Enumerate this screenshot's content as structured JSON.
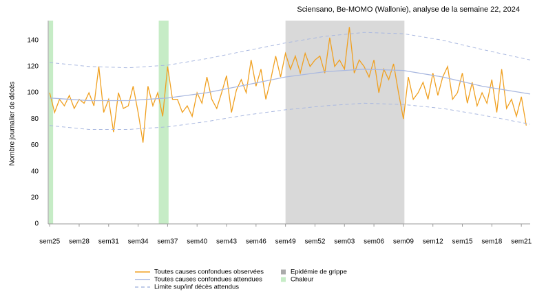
{
  "chart_data": {
    "type": "line",
    "title": "Sciensano, Be-MOMO (Wallonie), analyse de la semaine 22, 2024",
    "y_label": "Nombre journalier de décès",
    "xlim": [
      -0.15,
      48.9
    ],
    "ylim": [
      0,
      155
    ],
    "yticks": [
      0,
      20,
      40,
      60,
      80,
      100,
      120,
      140
    ],
    "xticks": [
      {
        "value": 0,
        "label": "sem25"
      },
      {
        "value": 3,
        "label": "sem28"
      },
      {
        "value": 6,
        "label": "sem31"
      },
      {
        "value": 9,
        "label": "sem34"
      },
      {
        "value": 12,
        "label": "sem37"
      },
      {
        "value": 15,
        "label": "sem40"
      },
      {
        "value": 18,
        "label": "sem43"
      },
      {
        "value": 21,
        "label": "sem46"
      },
      {
        "value": 24,
        "label": "sem49"
      },
      {
        "value": 27,
        "label": "sem52"
      },
      {
        "value": 30,
        "label": "sem03"
      },
      {
        "value": 33,
        "label": "sem06"
      },
      {
        "value": 36,
        "label": "sem09"
      },
      {
        "value": 39,
        "label": "sem12"
      },
      {
        "value": 42,
        "label": "sem15"
      },
      {
        "value": 45,
        "label": "sem18"
      },
      {
        "value": 48,
        "label": "sem21"
      }
    ],
    "bands": [
      {
        "name": "Epidémie de grippe",
        "color": "#d9d9d9",
        "ranges": [
          [
            24,
            36.1
          ]
        ]
      },
      {
        "name": "Chaleur",
        "color": "#c6ecc6",
        "ranges": [
          [
            -0.1,
            0.35
          ],
          [
            11.1,
            12.1
          ]
        ]
      }
    ],
    "series": [
      {
        "name": "Toutes causes confondues observées",
        "color": "#f0a020",
        "style": "solid",
        "x": [
          0,
          0.5,
          1,
          1.5,
          2,
          2.5,
          3,
          3.5,
          4,
          4.5,
          5,
          5.5,
          6,
          6.5,
          7,
          7.5,
          8,
          8.5,
          9,
          9.5,
          10,
          10.5,
          11,
          11.5,
          12,
          12.5,
          13,
          13.5,
          14,
          14.5,
          15,
          15.5,
          16,
          16.5,
          17,
          17.5,
          18,
          18.5,
          19,
          19.5,
          20,
          20.5,
          21,
          21.5,
          22,
          22.5,
          23,
          23.5,
          24,
          24.5,
          25,
          25.5,
          26,
          26.5,
          27,
          27.5,
          28,
          28.5,
          29,
          29.5,
          30,
          30.5,
          31,
          31.5,
          32,
          32.5,
          33,
          33.5,
          34,
          34.5,
          35,
          35.5,
          36,
          36.5,
          37,
          37.5,
          38,
          38.5,
          39,
          39.5,
          40,
          40.5,
          41,
          41.5,
          42,
          42.5,
          43,
          43.5,
          44,
          44.5,
          45,
          45.5,
          46,
          46.5,
          47,
          47.5,
          48,
          48.5
        ],
        "values": [
          100,
          85,
          95,
          90,
          98,
          88,
          95,
          92,
          100,
          90,
          120,
          85,
          95,
          70,
          100,
          88,
          90,
          105,
          85,
          62,
          105,
          90,
          100,
          82,
          120,
          95,
          95,
          85,
          90,
          82,
          100,
          92,
          112,
          95,
          88,
          100,
          113,
          85,
          102,
          110,
          100,
          125,
          105,
          118,
          95,
          110,
          128,
          112,
          130,
          118,
          128,
          115,
          130,
          120,
          125,
          128,
          115,
          142,
          120,
          125,
          118,
          150,
          115,
          125,
          120,
          112,
          125,
          100,
          118,
          110,
          122,
          100,
          80,
          112,
          95,
          100,
          108,
          95,
          115,
          98,
          112,
          120,
          95,
          100,
          115,
          92,
          108,
          90,
          100,
          92,
          110,
          85,
          118,
          88,
          95,
          82,
          97,
          75
        ]
      },
      {
        "name": "Toutes causes confondues attendues",
        "color": "#a9b8e0",
        "style": "solid",
        "x": [
          0,
          4,
          8,
          12,
          16,
          20,
          24,
          28,
          32,
          36,
          40,
          44,
          48.9
        ],
        "values": [
          96,
          94,
          94,
          96,
          100,
          106,
          112,
          116,
          118,
          117,
          112,
          105,
          99
        ]
      },
      {
        "name": "Limite sup/inf décès attendus",
        "color": "#a9b8e0",
        "style": "dashed",
        "x": [
          0,
          4,
          8,
          12,
          16,
          20,
          24,
          28,
          32,
          36,
          40,
          44,
          48.9
        ],
        "upper": [
          123,
          120,
          119,
          121,
          126,
          132,
          138,
          143,
          146,
          145,
          140,
          133,
          125
        ],
        "lower": [
          75,
          72,
          72,
          74,
          78,
          83,
          87,
          90,
          92,
          91,
          88,
          83,
          76
        ]
      }
    ]
  }
}
